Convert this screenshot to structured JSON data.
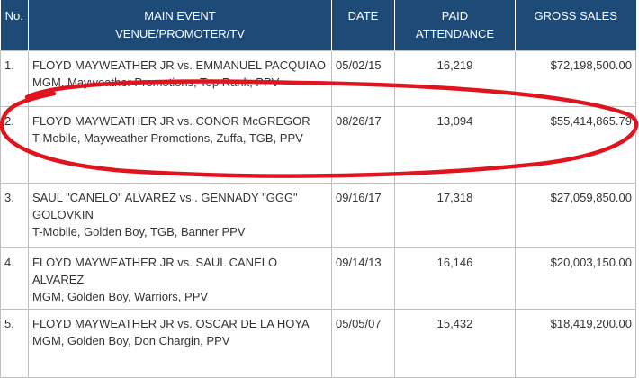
{
  "header": {
    "no": "No.",
    "event_line1": "MAIN EVENT",
    "event_line2": "VENUE/PROMOTER/TV",
    "date": "DATE",
    "attendance_line1": "PAID",
    "attendance_line2": "ATTENDANCE",
    "gross": "GROSS SALES"
  },
  "rows": [
    {
      "no": "1.",
      "event": "FLOYD MAYWEATHER JR vs. EMMANUEL PACQUIAO",
      "venue": "MGM, Mayweather Promotions, Top Rank, PPV",
      "date": "05/02/15",
      "attendance": "16,219",
      "gross": "$72,198,500.00"
    },
    {
      "no": "2.",
      "event": "FLOYD MAYWEATHER JR vs. CONOR McGREGOR",
      "venue": "T-Mobile, Mayweather Promotions, Zuffa, TGB, PPV",
      "date": "08/26/17",
      "attendance": "13,094",
      "gross": "$55,414,865.79"
    },
    {
      "no": "3.",
      "event": "SAUL \"CANELO\" ALVAREZ vs . GENNADY \"GGG\" GOLOVKIN",
      "venue": "T-Mobile, Golden Boy, TGB, Banner PPV",
      "date": "09/16/17",
      "attendance": "17,318",
      "gross": "$27,059,850.00"
    },
    {
      "no": "4.",
      "event": "FLOYD MAYWEATHER JR vs. SAUL CANELO ALVAREZ",
      "venue": "MGM, Golden Boy, Warriors, PPV",
      "date": "09/14/13",
      "attendance": "16,146",
      "gross": "$20,003,150.00"
    },
    {
      "no": "5.",
      "event": "FLOYD MAYWEATHER JR vs. OSCAR DE LA HOYA",
      "venue": "MGM, Golden Boy, Don Chargin, PPV",
      "date": "05/05/07",
      "attendance": "15,432",
      "gross": "$18,419,200.00"
    }
  ],
  "annotation": {
    "color": "#e0141e",
    "highlighted_row": 2
  }
}
